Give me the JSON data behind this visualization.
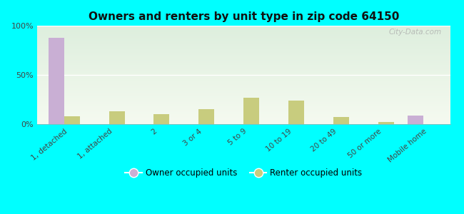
{
  "title": "Owners and renters by unit type in zip code 64150",
  "categories": [
    "1, detached",
    "1, attached",
    "2",
    "3 or 4",
    "5 to 9",
    "10 to 19",
    "20 to 49",
    "50 or more",
    "Mobile home"
  ],
  "owner_values": [
    88,
    0,
    0,
    0,
    0,
    0,
    0,
    0,
    9
  ],
  "renter_values": [
    8,
    13,
    10,
    15,
    27,
    24,
    7,
    2,
    0
  ],
  "owner_color": "#c9afd4",
  "renter_color": "#c8cc7e",
  "background_color": "#00ffff",
  "plot_bg_top": "#ddeedd",
  "plot_bg_bottom": "#f5faf0",
  "ylim": [
    0,
    100
  ],
  "yticks": [
    0,
    50,
    100
  ],
  "ytick_labels": [
    "0%",
    "50%",
    "100%"
  ],
  "bar_width": 0.35,
  "legend_owner": "Owner occupied units",
  "legend_renter": "Renter occupied units",
  "watermark": "City-Data.com"
}
